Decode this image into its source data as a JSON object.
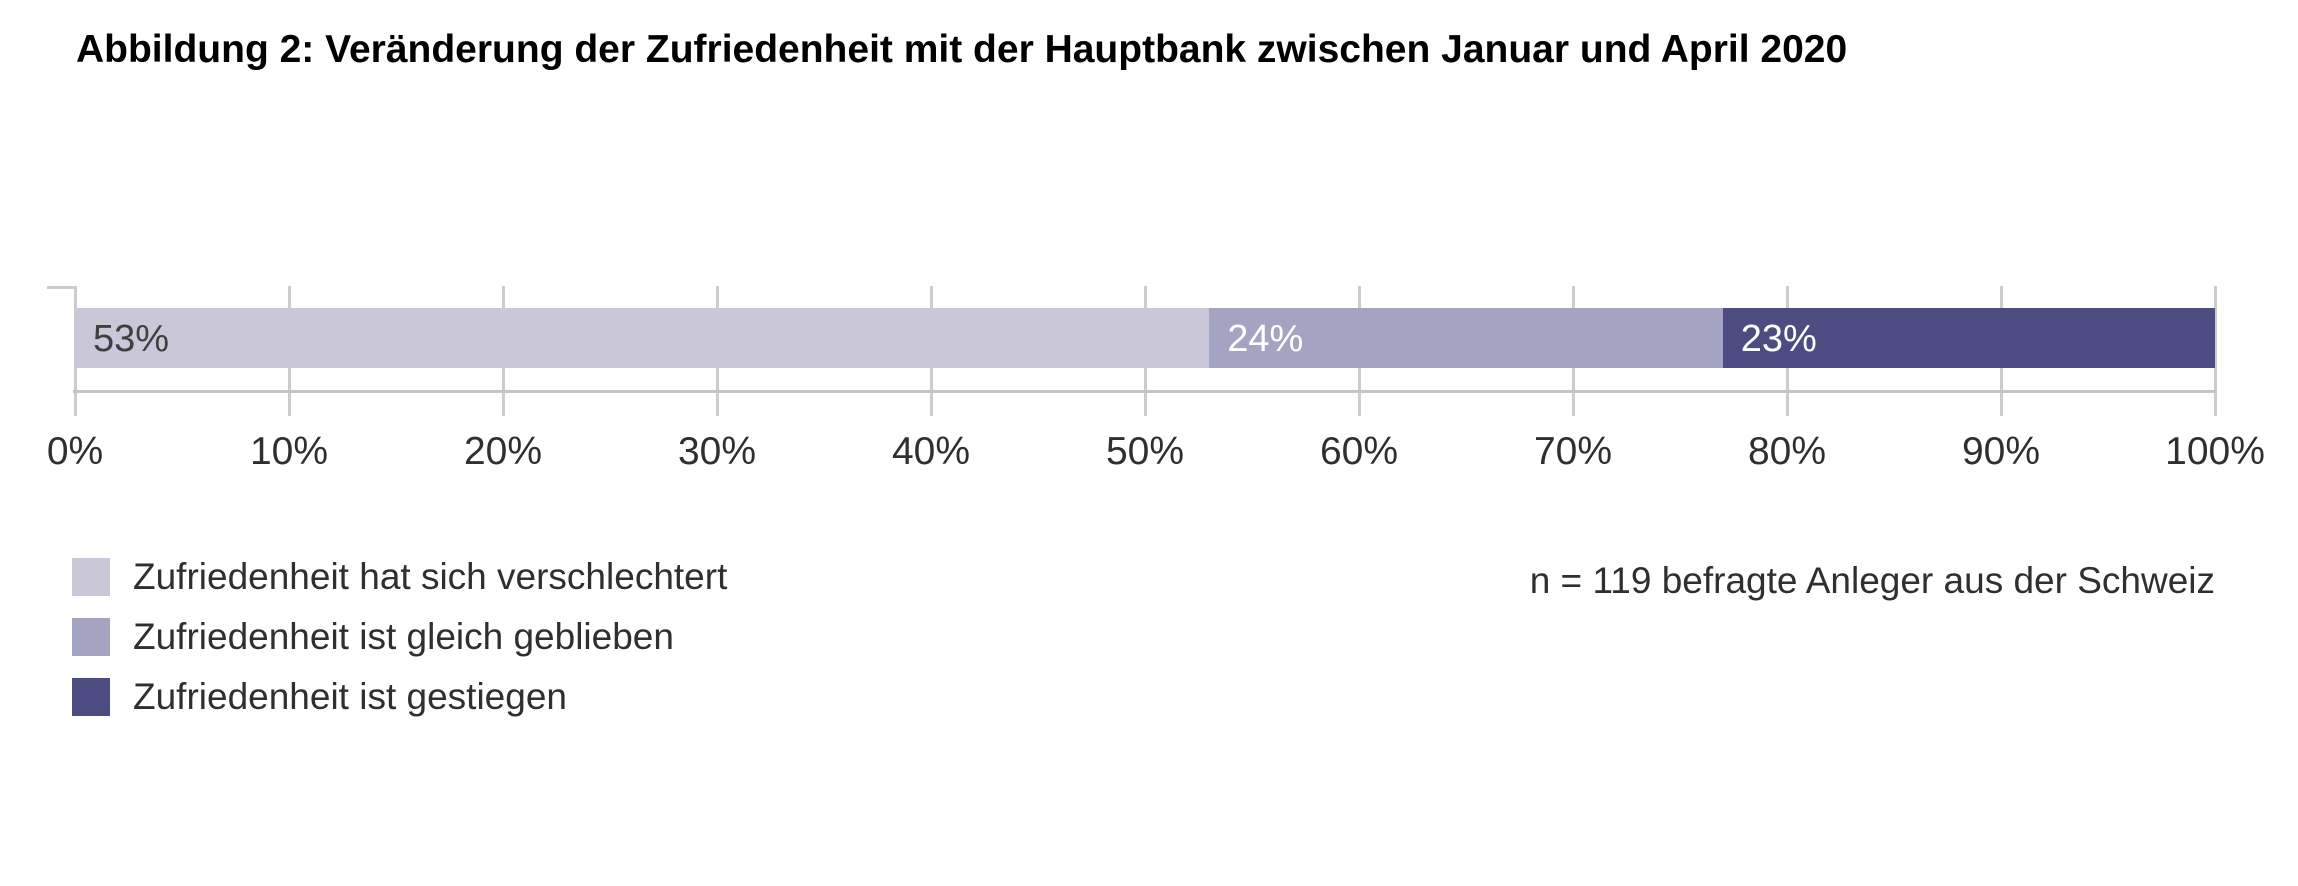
{
  "title": "Abbildung 2: Veränderung der Zufriedenheit mit der Hauptbank zwischen Januar und April 2020",
  "note": "n = 119 befragte Anleger aus der Schweiz",
  "chart_data": {
    "type": "bar",
    "orientation": "horizontal",
    "stacked": true,
    "title": "Abbildung 2: Veränderung der Zufriedenheit mit der Hauptbank zwischen Januar und April 2020",
    "series": [
      {
        "name": "Zufriedenheit hat sich verschlechtert",
        "value": 53,
        "label": "53%",
        "color": "#c9c7d8",
        "label_color": "#3f3f3f"
      },
      {
        "name": "Zufriedenheit ist gleich geblieben",
        "value": 24,
        "label": "24%",
        "color": "#a5a3c2",
        "label_color": "#ffffff"
      },
      {
        "name": "Zufriedenheit ist gestiegen",
        "value": 23,
        "label": "23%",
        "color": "#4c4c83",
        "label_color": "#ffffff"
      }
    ],
    "x_axis": {
      "min": 0,
      "max": 100,
      "tick_step": 10,
      "tick_labels": [
        "0%",
        "10%",
        "20%",
        "30%",
        "40%",
        "50%",
        "60%",
        "70%",
        "80%",
        "90%",
        "100%"
      ]
    },
    "grid": true,
    "legend_position": "bottom-left",
    "annotation": "n = 119 befragte Anleger aus der Schweiz",
    "style_colors": {
      "gridline": "#cccccc",
      "axis_line": "#c4c4c4"
    }
  }
}
